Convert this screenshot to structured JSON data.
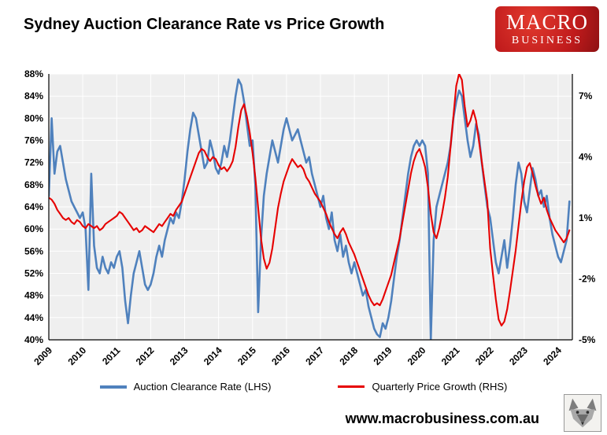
{
  "header": {
    "title": "Sydney Auction Clearance Rate vs Price Growth",
    "logo": {
      "line1": "MACRO",
      "line2": "BUSINESS",
      "bg_color": "#c01b1c"
    }
  },
  "legend": [
    {
      "label": "Auction Clearance Rate (LHS)",
      "color": "#4f81bd",
      "swatch_thickness": 4
    },
    {
      "label": "Quarterly Price Growth (RHS)",
      "color": "#e60000",
      "swatch_thickness": 3
    }
  ],
  "footer": {
    "url": "www.macrobusiness.com.au"
  },
  "chart_data": {
    "type": "line",
    "title": "Sydney Auction Clearance Rate vs Price Growth",
    "plot_bg": "#efefef",
    "grid_color": "#ffffff",
    "points_per_year": 12,
    "x_axis": {
      "start": 2009,
      "end": 2024.42,
      "tick_years": [
        2009,
        2010,
        2011,
        2012,
        2013,
        2014,
        2015,
        2016,
        2017,
        2018,
        2019,
        2020,
        2021,
        2022,
        2023,
        2024
      ],
      "label_rotation": -45
    },
    "lhs_axis": {
      "min": 40,
      "max": 88,
      "step": 4,
      "suffix": "%"
    },
    "rhs_axis": {
      "ticks": [
        7,
        4,
        1,
        -2,
        -5
      ],
      "suffix": "%",
      "rhs_low": -5,
      "lhs_low": 40,
      "rhs_high": 7,
      "lhs_high": 84
    },
    "series": [
      {
        "name": "Auction Clearance Rate (LHS)",
        "axis": "lhs",
        "color": "#4f81bd",
        "width": 2.6,
        "values": [
          66,
          80,
          70,
          74,
          75,
          72,
          69,
          67,
          65,
          64,
          63,
          62,
          63,
          60,
          49,
          70,
          57,
          53,
          52,
          55,
          53,
          52,
          54,
          53,
          55,
          56,
          53,
          47,
          43,
          48,
          52,
          54,
          56,
          53,
          50,
          49,
          50,
          52,
          55,
          57,
          55,
          58,
          60,
          62,
          61,
          63,
          62,
          65,
          69,
          74,
          78,
          81,
          80,
          77,
          74,
          71,
          72,
          76,
          74,
          71,
          70,
          72,
          75,
          73,
          76,
          80,
          84,
          87,
          86,
          83,
          79,
          75,
          76,
          68,
          45,
          58,
          66,
          70,
          73,
          76,
          74,
          72,
          75,
          78,
          80,
          78,
          76,
          77,
          78,
          76,
          74,
          72,
          73,
          70,
          68,
          66,
          64,
          66,
          62,
          60,
          63,
          58,
          56,
          59,
          55,
          57,
          54,
          52,
          54,
          52,
          50,
          48,
          49,
          46,
          44,
          42,
          41,
          40.5,
          43,
          42,
          44,
          47,
          51,
          55,
          58,
          62,
          66,
          70,
          73,
          75,
          76,
          75,
          76,
          75,
          70,
          40,
          58,
          64,
          66,
          68,
          70,
          72,
          75,
          80,
          83,
          85,
          84,
          80,
          76,
          73,
          75,
          79,
          77,
          72,
          68,
          64,
          62,
          58,
          54,
          52,
          55,
          58,
          53,
          57,
          62,
          68,
          72,
          70,
          65,
          63,
          67,
          71,
          69,
          66,
          67,
          64,
          66,
          62,
          59,
          57,
          55,
          54,
          56,
          58,
          65
        ]
      },
      {
        "name": "Quarterly Price Growth (RHS)",
        "axis": "rhs",
        "color": "#e60000",
        "width": 2.1,
        "values": [
          2.0,
          1.9,
          1.7,
          1.4,
          1.2,
          1.0,
          0.9,
          1.0,
          0.8,
          0.7,
          0.9,
          0.8,
          0.6,
          0.5,
          0.7,
          0.6,
          0.5,
          0.6,
          0.4,
          0.5,
          0.7,
          0.8,
          0.9,
          1.0,
          1.1,
          1.3,
          1.2,
          1.0,
          0.8,
          0.6,
          0.4,
          0.5,
          0.3,
          0.4,
          0.6,
          0.5,
          0.4,
          0.3,
          0.5,
          0.7,
          0.6,
          0.8,
          1.0,
          1.2,
          1.1,
          1.4,
          1.6,
          1.8,
          2.2,
          2.6,
          3.0,
          3.4,
          3.8,
          4.2,
          4.4,
          4.3,
          4.0,
          3.8,
          4.0,
          3.9,
          3.6,
          3.4,
          3.5,
          3.3,
          3.5,
          3.8,
          4.5,
          5.5,
          6.3,
          6.6,
          6.0,
          5.2,
          4.2,
          3.0,
          1.5,
          0.0,
          -1.0,
          -1.5,
          -1.2,
          -0.5,
          0.5,
          1.5,
          2.2,
          2.8,
          3.2,
          3.6,
          3.9,
          3.7,
          3.5,
          3.6,
          3.4,
          3.0,
          2.8,
          2.5,
          2.2,
          2.0,
          1.8,
          1.5,
          1.2,
          0.8,
          0.5,
          0.2,
          0.0,
          0.3,
          0.5,
          0.2,
          -0.2,
          -0.5,
          -0.8,
          -1.2,
          -1.6,
          -2.0,
          -2.4,
          -2.8,
          -3.1,
          -3.3,
          -3.2,
          -3.3,
          -3.0,
          -2.6,
          -2.2,
          -1.8,
          -1.2,
          -0.6,
          0.0,
          0.8,
          1.6,
          2.4,
          3.2,
          3.8,
          4.2,
          4.4,
          4.0,
          3.5,
          2.5,
          1.2,
          0.3,
          0.0,
          0.5,
          1.2,
          2.0,
          3.0,
          4.5,
          6.0,
          7.5,
          8.1,
          7.8,
          6.5,
          5.5,
          5.8,
          6.3,
          5.8,
          4.8,
          3.8,
          2.8,
          1.8,
          -0.5,
          -1.8,
          -3.0,
          -4.0,
          -4.3,
          -4.1,
          -3.5,
          -2.6,
          -1.6,
          -0.6,
          0.6,
          1.8,
          2.8,
          3.5,
          3.7,
          3.2,
          2.6,
          2.1,
          1.7,
          2.0,
          1.4,
          1.0,
          0.7,
          0.4,
          0.2,
          0.0,
          -0.2,
          0.0,
          0.4
        ]
      }
    ]
  }
}
